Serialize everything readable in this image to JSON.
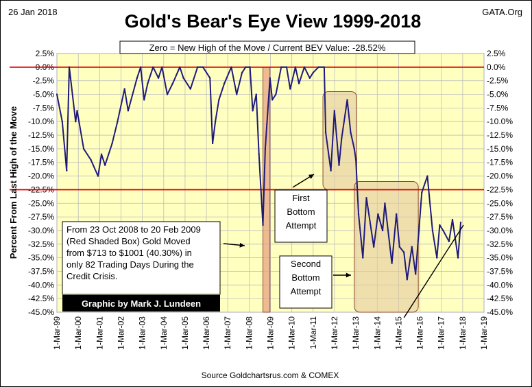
{
  "header": {
    "date": "26 Jan 2018",
    "title": "Gold's Bear's Eye View 1999-2018",
    "site": "GATA.Org",
    "bev_note": "Zero = New High of the Move / Current BEV Value:  -28.52%"
  },
  "chart_data": {
    "type": "line",
    "title": "Gold's Bear's Eye View 1999-2018",
    "ylabel": "Percent  From Last High of the Move",
    "xlabel": "Source  Goldchartsrus.com & COMEX",
    "ylim": [
      -45,
      2.5
    ],
    "xlim": [
      "1999-03-01",
      "2019-03-01"
    ],
    "grid": true,
    "y_ticks": [
      "2.5%",
      "0.0%",
      "-2.5%",
      "-5.0%",
      "-7.5%",
      "-10.0%",
      "-12.5%",
      "-15.0%",
      "-17.5%",
      "-20.0%",
      "-22.5%",
      "-25.0%",
      "-27.5%",
      "-30.0%",
      "-32.5%",
      "-35.0%",
      "-37.5%",
      "-40.0%",
      "-42.5%",
      "-45.0%"
    ],
    "x_ticks": [
      "1-Mar-99",
      "1-Mar-00",
      "1-Mar-01",
      "1-Mar-02",
      "1-Mar-03",
      "1-Mar-04",
      "1-Mar-05",
      "1-Mar-06",
      "1-Mar-07",
      "1-Mar-08",
      "1-Mar-09",
      "1-Mar-10",
      "1-Mar-11",
      "1-Mar-12",
      "1-Mar-13",
      "1-Mar-14",
      "1-Mar-15",
      "1-Mar-16",
      "1-Mar-17",
      "1-Mar-18",
      "1-Mar-19"
    ],
    "reference_lines": [
      0,
      -22.5
    ],
    "series": [
      {
        "x": [
          "1999-03-01",
          "1999-06-01",
          "1999-08-15",
          "1999-09-28",
          "1999-10-20",
          "2000-01-15",
          "2000-02-10",
          "2000-06-01",
          "2000-10-01",
          "2001-02-01",
          "2001-04-01",
          "2001-06-01",
          "2001-10-01",
          "2002-01-01",
          "2002-05-01",
          "2002-07-01",
          "2002-12-01",
          "2003-02-01",
          "2003-04-01",
          "2003-06-01",
          "2003-09-01",
          "2003-12-01",
          "2004-02-01",
          "2004-05-01",
          "2004-08-01",
          "2004-12-01",
          "2005-02-01",
          "2005-06-01",
          "2005-10-01",
          "2006-01-01",
          "2006-05-01",
          "2006-06-15",
          "2006-08-01",
          "2006-10-01",
          "2007-01-01",
          "2007-05-01",
          "2007-08-01",
          "2007-11-01",
          "2008-01-01",
          "2008-03-15",
          "2008-05-01",
          "2008-07-01",
          "2008-08-15",
          "2008-10-23",
          "2008-12-01",
          "2009-02-20",
          "2009-04-01",
          "2009-06-01",
          "2009-09-01",
          "2009-12-01",
          "2010-02-01",
          "2010-05-01",
          "2010-07-01",
          "2010-10-01",
          "2011-01-01",
          "2011-03-01",
          "2011-06-01",
          "2011-09-06",
          "2011-10-01",
          "2011-12-29",
          "2012-02-28",
          "2012-05-16",
          "2012-07-01",
          "2012-10-04",
          "2012-12-01",
          "2013-02-01",
          "2013-03-01",
          "2013-04-15",
          "2013-06-28",
          "2013-08-28",
          "2013-12-31",
          "2014-03-14",
          "2014-06-01",
          "2014-07-10",
          "2014-11-06",
          "2015-01-22",
          "2015-03-17",
          "2015-06-01",
          "2015-07-24",
          "2015-10-14",
          "2015-12-17",
          "2016-02-11",
          "2016-04-01",
          "2016-07-06",
          "2016-10-01",
          "2016-12-15",
          "2017-02-01",
          "2017-04-01",
          "2017-07-10",
          "2017-09-08",
          "2017-12-12",
          "2018-01-26"
        ],
        "y": [
          -5,
          -10,
          -19,
          0,
          -2,
          -10,
          -8,
          -15,
          -17,
          -20,
          -16,
          -18,
          -14,
          -10,
          -4,
          -8,
          -2,
          0,
          -6,
          -3,
          0,
          -2,
          0,
          -5,
          -3,
          0,
          -2,
          -4,
          0,
          0,
          -2,
          -14,
          -10,
          -6,
          -3,
          0,
          -5,
          -1,
          0,
          0,
          -8,
          -5,
          -16,
          -29,
          -15,
          -2,
          -6,
          -5,
          0,
          0,
          -4,
          0,
          -3,
          0,
          -2,
          -1,
          0,
          0,
          -12,
          -19,
          -8,
          -18,
          -13,
          -6,
          -12,
          -15,
          -17,
          -27,
          -35,
          -24,
          -33,
          -27,
          -30,
          -25,
          -36,
          -27,
          -33,
          -34,
          -39,
          -33,
          -38,
          -30,
          -23,
          -20,
          -30,
          -35,
          -29,
          -30,
          -32,
          -28,
          -35,
          -28.52
        ]
      }
    ],
    "annotations": {
      "crisis_note": "From 23 Oct 2008 to 20 Feb 2009 (Red Shaded Box)  Gold Moved from $713 to $1001 (40.30%) in only 82 Trading Days During the Credit Crisis.",
      "first_bottom": "First Bottom Attempt",
      "second_bottom": "Second Bottom Attempt",
      "credit": "Graphic by Mark J. Lundeen"
    },
    "colors": {
      "plot_bg": "#FFFFC0",
      "series": "#1F1A7A",
      "reference": "#E00000",
      "shaded_red": "#E7A383",
      "shaded_tan": "#E2C9A0",
      "grid": "#BDBDBD"
    }
  }
}
